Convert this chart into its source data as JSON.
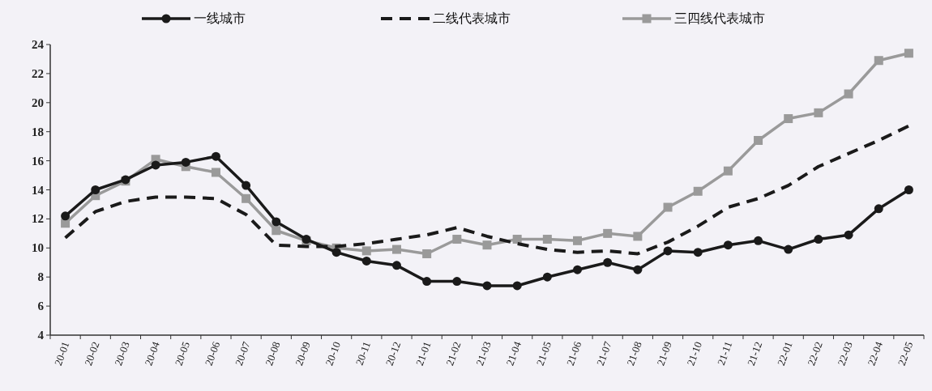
{
  "chart_data": {
    "type": "line",
    "categories": [
      "20-01",
      "20-02",
      "20-03",
      "20-04",
      "20-05",
      "20-06",
      "20-07",
      "20-08",
      "20-09",
      "20-10",
      "20-11",
      "20-12",
      "21-01",
      "21-02",
      "21-03",
      "21-04",
      "21-05",
      "21-06",
      "21-07",
      "21-08",
      "21-09",
      "21-10",
      "21-11",
      "21-12",
      "22-01",
      "22-02",
      "22-03",
      "22-04",
      "22-05"
    ],
    "series": [
      {
        "name": "一线城市",
        "color": "#1a1a1a",
        "marker": "circle",
        "line_style": "solid",
        "values": [
          12.2,
          14.0,
          14.7,
          15.7,
          15.9,
          16.3,
          14.3,
          11.8,
          10.6,
          9.7,
          9.1,
          8.8,
          7.7,
          7.7,
          7.4,
          7.4,
          8.0,
          8.5,
          9.0,
          8.5,
          9.8,
          9.7,
          10.2,
          10.5,
          9.9,
          10.6,
          10.9,
          12.7,
          14.0
        ]
      },
      {
        "name": "二线代表城市",
        "color": "#1a1a1a",
        "marker": "none",
        "line_style": "dashed",
        "values": [
          10.7,
          12.5,
          13.2,
          13.5,
          13.5,
          13.4,
          12.3,
          10.2,
          10.1,
          10.1,
          10.3,
          10.6,
          10.9,
          11.4,
          10.8,
          10.3,
          9.9,
          9.7,
          9.8,
          9.6,
          10.4,
          11.5,
          12.8,
          13.4,
          14.3,
          15.6,
          16.5,
          17.4,
          18.4
        ]
      },
      {
        "name": "三四线代表城市",
        "color": "#9a9a9a",
        "marker": "square",
        "line_style": "solid",
        "values": [
          11.7,
          13.6,
          14.6,
          16.1,
          15.6,
          15.2,
          13.4,
          11.2,
          10.5,
          10.0,
          9.8,
          9.9,
          9.6,
          10.6,
          10.2,
          10.6,
          10.6,
          10.5,
          11.0,
          10.8,
          12.8,
          13.9,
          15.3,
          17.4,
          18.9,
          19.3,
          20.6,
          22.9,
          23.4
        ]
      }
    ],
    "ylim": [
      4,
      24
    ],
    "yticks": [
      4,
      6,
      8,
      10,
      12,
      14,
      16,
      18,
      20,
      22,
      24
    ],
    "legend": "top",
    "grid": false
  }
}
